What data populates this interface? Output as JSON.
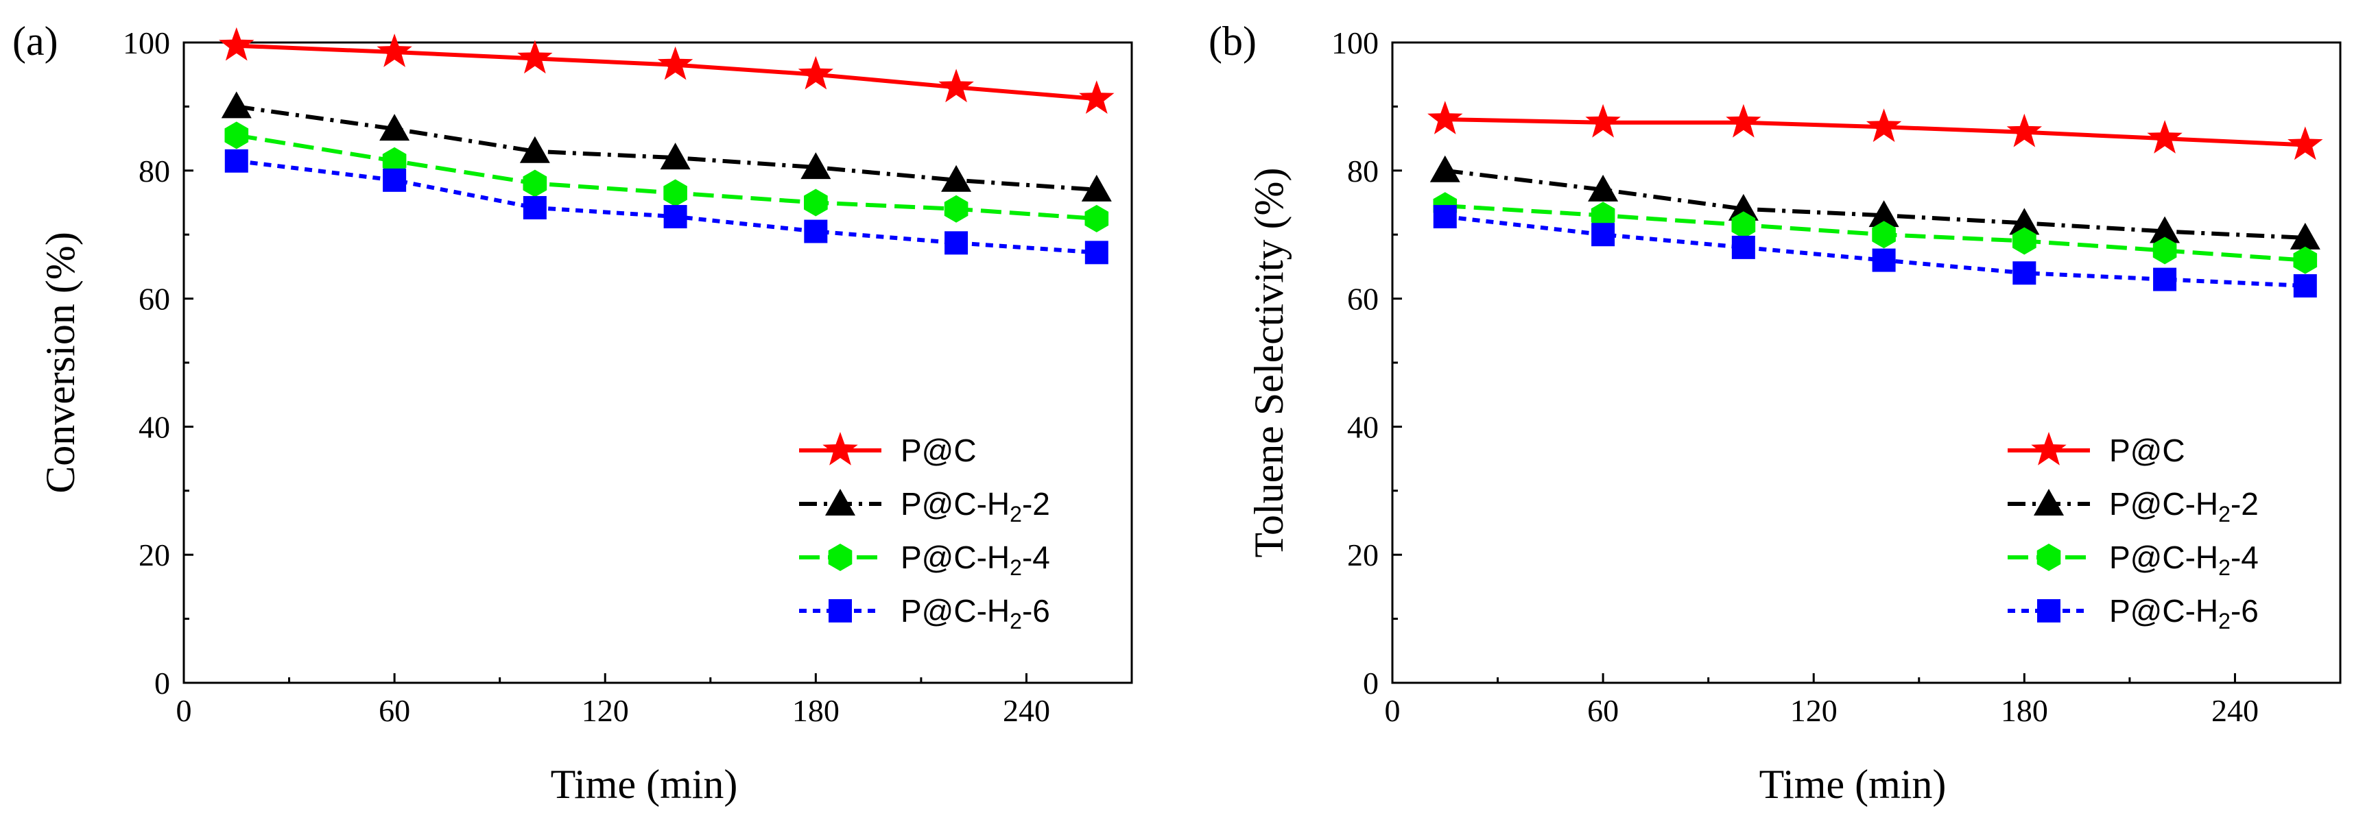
{
  "chart_data": [
    {
      "type": "line",
      "panel_label": "(a)",
      "title": "",
      "xlabel": "Time (min)",
      "ylabel": "Conversion (%)",
      "xlim": [
        0,
        270
      ],
      "ylim": [
        0,
        100
      ],
      "xticks": [
        "0",
        "60",
        "120",
        "180",
        "240"
      ],
      "yticks": [
        "0",
        "20",
        "40",
        "60",
        "80",
        "100"
      ],
      "x": [
        15,
        60,
        100,
        140,
        180,
        220,
        260
      ],
      "legend_position": "bottom-right",
      "series": [
        {
          "name": "P@C",
          "label_main": "P@C",
          "label_sub": "",
          "label_tail": "",
          "color": "#ff0000",
          "marker": "star",
          "dash": "solid",
          "values": [
            99.5,
            98.5,
            97.5,
            96.5,
            95,
            93,
            91.2
          ]
        },
        {
          "name": "P@C-H2-2",
          "label_main": "P@C-H",
          "label_sub": "2",
          "label_tail": "-2",
          "color": "#000000",
          "marker": "triangle",
          "dash": "dashdot",
          "values": [
            90,
            86.5,
            83,
            82,
            80.5,
            78.5,
            77
          ]
        },
        {
          "name": "P@C-H2-4",
          "label_main": "P@C-H",
          "label_sub": "2",
          "label_tail": "-4",
          "color": "#00ee00",
          "marker": "hexagon",
          "dash": "dash",
          "values": [
            85.5,
            81.5,
            78,
            76.5,
            75,
            74,
            72.5
          ]
        },
        {
          "name": "P@C-H2-6",
          "label_main": "P@C-H",
          "label_sub": "2",
          "label_tail": "-6",
          "color": "#0000ff",
          "marker": "square",
          "dash": "dot",
          "values": [
            81.5,
            78.5,
            74.2,
            72.8,
            70.5,
            68.7,
            67.2
          ]
        }
      ]
    },
    {
      "type": "line",
      "panel_label": "(b)",
      "title": "",
      "xlabel": "Time (min)",
      "ylabel": "Toluene Selectivity (%)",
      "xlim": [
        0,
        270
      ],
      "ylim": [
        0,
        100
      ],
      "xticks": [
        "0",
        "60",
        "120",
        "180",
        "240"
      ],
      "yticks": [
        "0",
        "20",
        "40",
        "60",
        "80",
        "100"
      ],
      "x": [
        15,
        60,
        100,
        140,
        180,
        220,
        260
      ],
      "legend_position": "bottom-right",
      "series": [
        {
          "name": "P@C",
          "label_main": "P@C",
          "label_sub": "",
          "label_tail": "",
          "color": "#ff0000",
          "marker": "star",
          "dash": "solid",
          "values": [
            88,
            87.5,
            87.5,
            86.8,
            86,
            85,
            84
          ]
        },
        {
          "name": "P@C-H2-2",
          "label_main": "P@C-H",
          "label_sub": "2",
          "label_tail": "-2",
          "color": "#000000",
          "marker": "triangle",
          "dash": "dashdot",
          "values": [
            80,
            77,
            74,
            73,
            71.8,
            70.5,
            69.5
          ]
        },
        {
          "name": "P@C-H2-4",
          "label_main": "P@C-H",
          "label_sub": "2",
          "label_tail": "-4",
          "color": "#00ee00",
          "marker": "hexagon",
          "dash": "dash",
          "values": [
            74.5,
            73,
            71.5,
            70,
            69,
            67.5,
            66
          ]
        },
        {
          "name": "P@C-H2-6",
          "label_main": "P@C-H",
          "label_sub": "2",
          "label_tail": "-6",
          "color": "#0000ff",
          "marker": "square",
          "dash": "dot",
          "values": [
            72.8,
            70,
            68,
            66,
            64,
            63,
            62
          ]
        }
      ]
    }
  ]
}
